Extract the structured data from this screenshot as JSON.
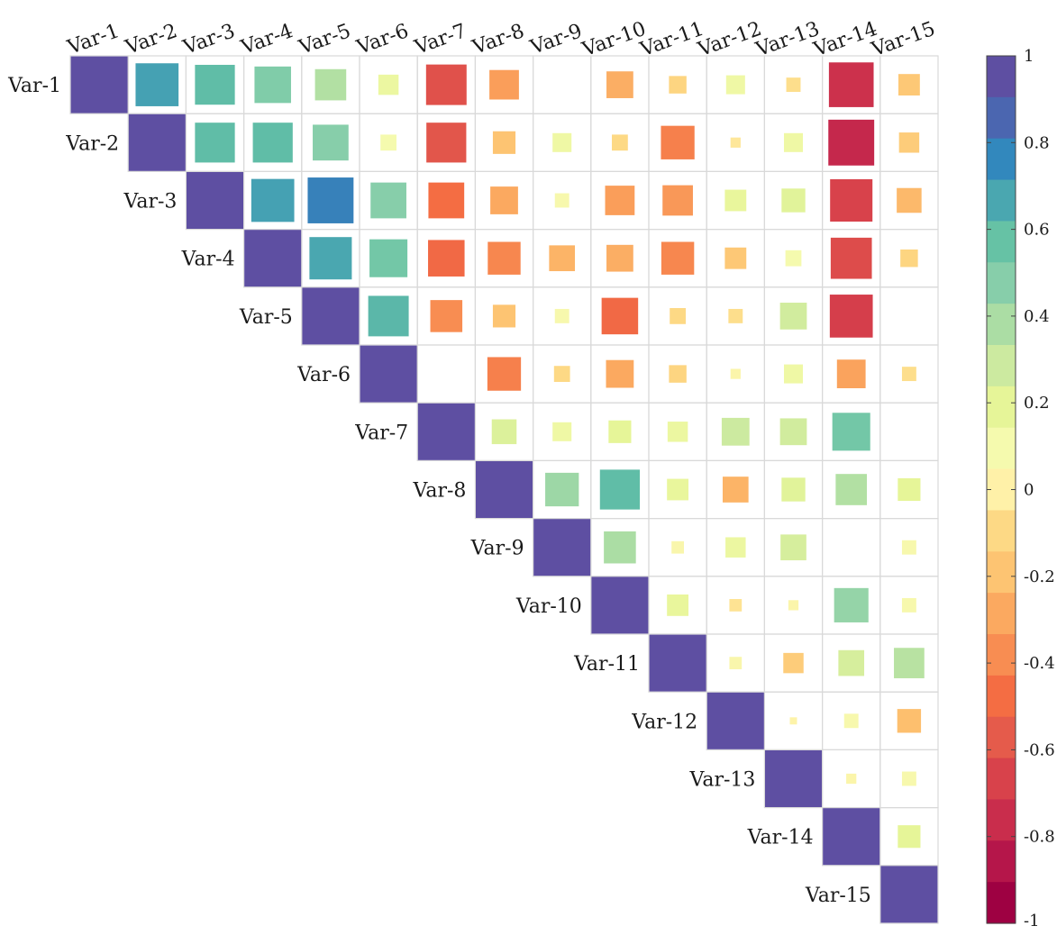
{
  "chart_data": {
    "type": "heatmap",
    "title": "",
    "variables": [
      "Var-1",
      "Var-2",
      "Var-3",
      "Var-4",
      "Var-5",
      "Var-6",
      "Var-7",
      "Var-8",
      "Var-9",
      "Var-10",
      "Var-11",
      "Var-12",
      "Var-13",
      "Var-14",
      "Var-15"
    ],
    "layout": "upper-triangle",
    "marker": "square sized by |value|",
    "values": [
      [
        1,
        0.72,
        0.62,
        0.52,
        0.38,
        0.16,
        -0.64,
        -0.34,
        0,
        -0.28,
        -0.12,
        0.14,
        -0.08,
        -0.78,
        -0.18
      ],
      [
        0.72,
        1,
        0.62,
        0.62,
        0.5,
        0.1,
        -0.62,
        -0.2,
        0.14,
        -0.1,
        -0.44,
        -0.04,
        0.14,
        -0.82,
        -0.16
      ],
      [
        0.62,
        0.62,
        1,
        0.72,
        0.82,
        0.5,
        -0.5,
        -0.3,
        0.08,
        -0.34,
        -0.36,
        0.18,
        0.22,
        -0.7,
        -0.24
      ],
      [
        0.52,
        0.62,
        0.72,
        1,
        0.7,
        0.56,
        -0.52,
        -0.42,
        -0.26,
        -0.28,
        -0.42,
        -0.18,
        0.1,
        -0.66,
        -0.12
      ],
      [
        0.38,
        0.5,
        0.82,
        0.7,
        1,
        0.64,
        -0.4,
        -0.2,
        0.08,
        -0.52,
        -0.1,
        -0.08,
        0.28,
        -0.72,
        0
      ],
      [
        0.16,
        0.1,
        0.5,
        0.56,
        0.64,
        1,
        0,
        -0.44,
        -0.1,
        -0.3,
        -0.12,
        0.04,
        0.14,
        -0.32,
        -0.08
      ],
      [
        -0.64,
        -0.62,
        -0.5,
        -0.52,
        -0.4,
        0,
        1,
        0.24,
        0.14,
        0.2,
        0.16,
        0.3,
        0.28,
        0.56,
        0
      ],
      [
        -0.34,
        -0.2,
        -0.3,
        -0.42,
        -0.2,
        -0.44,
        0.24,
        1,
        0.44,
        0.62,
        0.18,
        -0.26,
        0.22,
        0.38,
        0.2
      ],
      [
        0,
        0.14,
        0.08,
        -0.26,
        0.08,
        -0.1,
        0.14,
        0.44,
        1,
        0.4,
        0.06,
        0.16,
        0.26,
        0,
        0.08
      ],
      [
        -0.28,
        -0.1,
        -0.34,
        -0.28,
        -0.52,
        -0.3,
        0.2,
        0.62,
        0.4,
        1,
        0.18,
        -0.06,
        0.04,
        0.46,
        0.08
      ],
      [
        -0.12,
        -0.44,
        -0.36,
        -0.42,
        -0.1,
        -0.12,
        0.16,
        0.18,
        0.06,
        0.18,
        1,
        0.06,
        -0.16,
        0.26,
        0.36
      ],
      [
        0.14,
        -0.04,
        0.18,
        -0.18,
        -0.08,
        0.04,
        0.3,
        -0.26,
        0.16,
        -0.06,
        0.06,
        1,
        0.02,
        0.08,
        -0.22
      ],
      [
        -0.08,
        0.14,
        0.22,
        0.1,
        0.28,
        0.14,
        0.28,
        0.22,
        0.26,
        0.04,
        -0.16,
        0.02,
        1,
        0.04,
        0.08
      ],
      [
        -0.78,
        -0.82,
        -0.7,
        -0.66,
        -0.72,
        -0.32,
        0.56,
        0.38,
        0,
        0.46,
        0.26,
        0.08,
        0.04,
        1,
        0.2
      ],
      [
        -0.18,
        -0.16,
        -0.24,
        -0.12,
        0,
        -0.08,
        0,
        0.2,
        0.08,
        0.08,
        0.36,
        -0.22,
        0.08,
        0.2,
        1
      ]
    ],
    "colorbar": {
      "range": [
        -1,
        1
      ],
      "ticks": [
        "1",
        "0.8",
        "0.6",
        "0.4",
        "0.2",
        "0",
        "-0.2",
        "-0.4",
        "-0.6",
        "-0.8",
        "-1"
      ],
      "colormap": "spectral (red-yellow-blue-purple)"
    }
  }
}
